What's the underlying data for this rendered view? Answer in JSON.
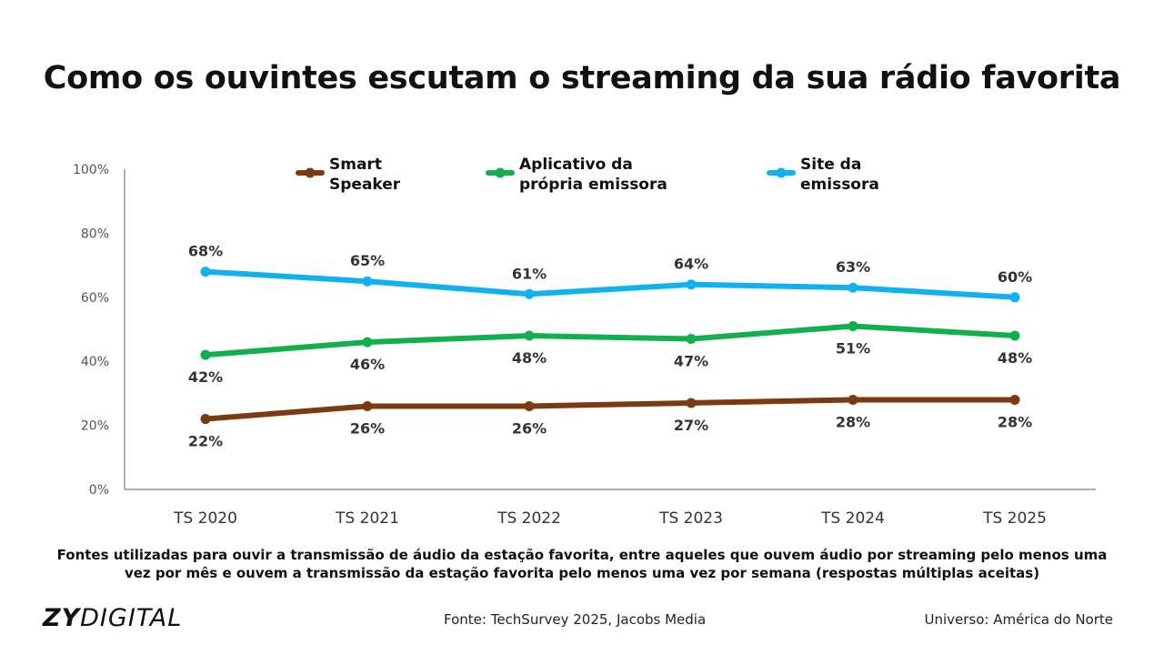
{
  "title": "Como os ouvintes escutam o streaming da sua rádio favorita",
  "chart_data": {
    "type": "line",
    "categories": [
      "TS 2020",
      "TS 2021",
      "TS 2022",
      "TS 2023",
      "TS 2024",
      "TS 2025"
    ],
    "y_ticks": [
      "0%",
      "20%",
      "40%",
      "60%",
      "80%",
      "100%"
    ],
    "ylim": [
      0,
      100
    ],
    "grid": false,
    "legend_position": "top",
    "series": [
      {
        "name": "Smart Speaker",
        "color": "#7b3a10",
        "values": [
          22,
          26,
          26,
          27,
          28,
          28
        ],
        "labels": [
          "22%",
          "26%",
          "26%",
          "27%",
          "28%",
          "28%"
        ],
        "label_position": "below"
      },
      {
        "name": "Aplicativo da própria emissora",
        "color": "#12b04c",
        "values": [
          42,
          46,
          48,
          47,
          51,
          48
        ],
        "labels": [
          "42%",
          "46%",
          "48%",
          "47%",
          "51%",
          "48%"
        ],
        "label_position": "below"
      },
      {
        "name": "Site da emissora",
        "color": "#0fb2ee",
        "values": [
          68,
          65,
          61,
          64,
          63,
          60
        ],
        "labels": [
          "68%",
          "65%",
          "61%",
          "64%",
          "63%",
          "60%"
        ],
        "label_position": "above"
      }
    ]
  },
  "legend": [
    {
      "line1": "Smart",
      "line2": "Speaker"
    },
    {
      "line1": "Aplicativo da",
      "line2": "própria emissora"
    },
    {
      "line1": "Site da",
      "line2": "emissora"
    }
  ],
  "caption": "Fontes utilizadas para ouvir a transmissão de áudio da estação favorita, entre aqueles que ouvem áudio por streaming pelo menos uma vez por mês e ouvem a transmissão da estação favorita pelo menos uma vez por semana (respostas múltiplas aceitas)",
  "footer": {
    "logo_bold": "ZY",
    "logo_light": "DIGITAL",
    "source": "Fonte: TechSurvey 2025, Jacobs Media",
    "universe": "Universo: América do Norte"
  }
}
